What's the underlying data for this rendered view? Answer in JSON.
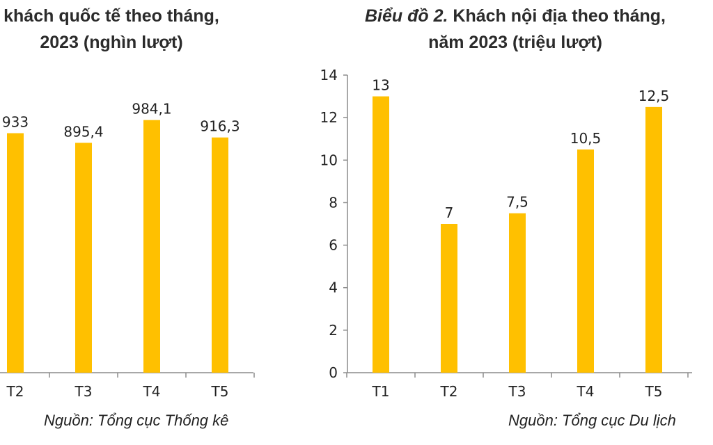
{
  "chart_data": [
    {
      "type": "bar",
      "title_prefix": "",
      "title_line1": "khách quốc tế theo tháng,",
      "title_line2": "2023 (nghìn lượt)",
      "categories": [
        "T2",
        "T3",
        "T4",
        "T5"
      ],
      "values": [
        933,
        895.4,
        984.1,
        916.3
      ],
      "value_labels": [
        "933",
        "895,4",
        "984,1",
        "916,3"
      ],
      "ylim": [
        0,
        1000
      ],
      "bar_color": "#FFC000",
      "source": "Nguồn: Tổng cục Thống kê"
    },
    {
      "type": "bar",
      "title_prefix": "Biểu đồ 2.",
      "title_line1": "Khách nội địa theo tháng,",
      "title_line2": "năm 2023 (triệu lượt)",
      "categories": [
        "T1",
        "T2",
        "T3",
        "T4",
        "T5"
      ],
      "values": [
        13,
        7,
        7.5,
        10.5,
        12.5
      ],
      "value_labels": [
        "13",
        "7",
        "7,5",
        "10,5",
        "12,5"
      ],
      "ylim": [
        0,
        14
      ],
      "yticks": [
        0,
        2,
        4,
        6,
        8,
        10,
        12,
        14
      ],
      "bar_color": "#FFC000",
      "source": "Nguồn: Tổng cục Du lịch"
    }
  ]
}
